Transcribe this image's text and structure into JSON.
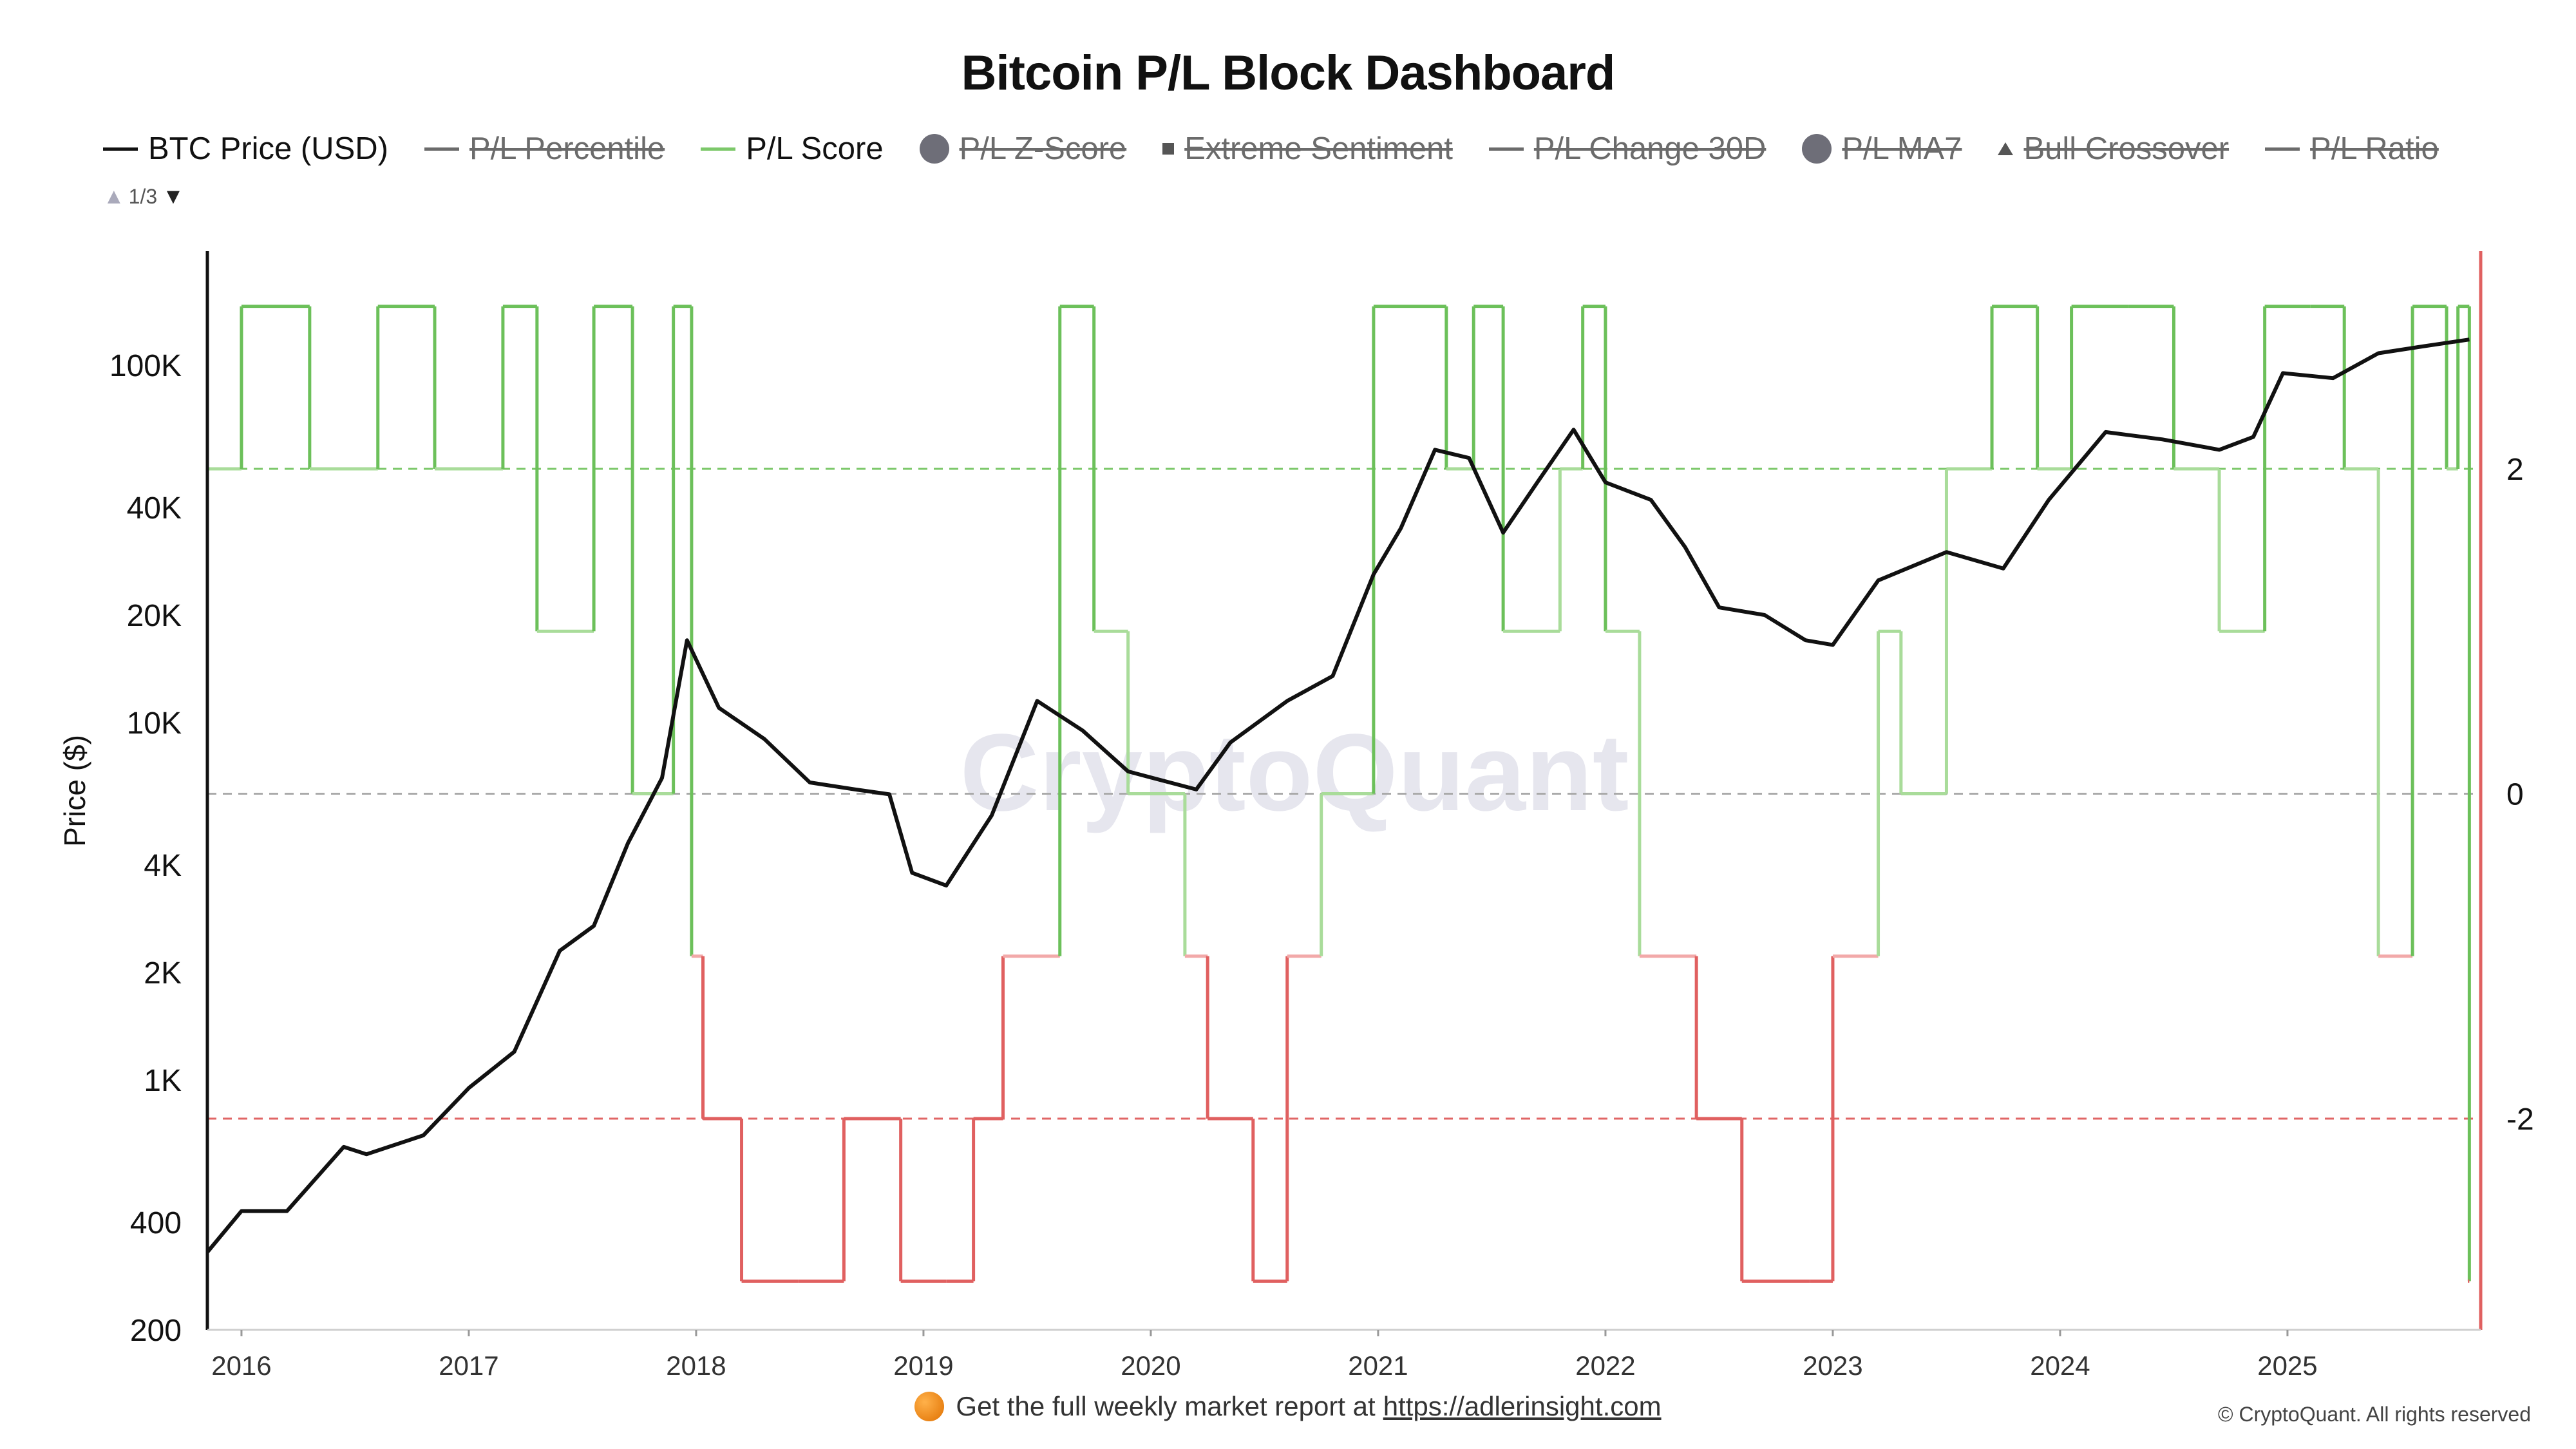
{
  "title": "Bitcoin P/L Block Dashboard",
  "legend": [
    {
      "label": "BTC Price (USD)",
      "marker": "line",
      "color": "#111111",
      "active": true
    },
    {
      "label": "P/L Percentile",
      "marker": "line",
      "color": "#6b6b6b",
      "active": false
    },
    {
      "label": "P/L Score",
      "marker": "line",
      "color": "#7cc86a",
      "active": true
    },
    {
      "label": "P/L Z-Score",
      "marker": "dot",
      "color": "#6e6e78",
      "active": false
    },
    {
      "label": "Extreme Sentiment",
      "marker": "square",
      "color": "#555555",
      "active": false
    },
    {
      "label": "P/L Change 30D",
      "marker": "line",
      "color": "#6b6b6b",
      "active": false
    },
    {
      "label": "P/L MA7",
      "marker": "dot",
      "color": "#6e6e78",
      "active": false
    },
    {
      "label": "Bull Crossover",
      "marker": "triangle",
      "color": "#555555",
      "active": false
    },
    {
      "label": "P/L Ratio",
      "marker": "line",
      "color": "#6b6b6b",
      "active": false
    }
  ],
  "pager": {
    "label": "1/3",
    "up_icon": "triangle-up-icon",
    "down_icon": "triangle-down-icon"
  },
  "watermark": "CryptoQuant",
  "footer": {
    "text": "Get the full weekly market report at",
    "link": "https://adlerinsight.com",
    "icon": "orange-circle-icon"
  },
  "copyright": "© CryptoQuant. All rights reserved",
  "chart_data": {
    "type": "line",
    "ylabel": "Price ($)",
    "y_scale": "log",
    "ylim": [
      200,
      200000
    ],
    "y_ticks": [
      {
        "label": "100K",
        "value": 100000
      },
      {
        "label": "40K",
        "value": 40000
      },
      {
        "label": "20K",
        "value": 20000
      },
      {
        "label": "10K",
        "value": 10000
      },
      {
        "label": "4K",
        "value": 4000
      },
      {
        "label": "2K",
        "value": 2000
      },
      {
        "label": "1K",
        "value": 1000
      },
      {
        "label": "400",
        "value": 400
      },
      {
        "label": "200",
        "value": 200
      }
    ],
    "y2_ticks": [
      2,
      0,
      -2
    ],
    "y2lim": [
      -3.3,
      3.3
    ],
    "xlim": [
      2015.85,
      2025.85
    ],
    "x_ticks": [
      "2016",
      "2017",
      "2018",
      "2019",
      "2020",
      "2021",
      "2022",
      "2023",
      "2024",
      "2025"
    ],
    "reference_lines": [
      {
        "value": 2,
        "color": "#7cc86a"
      },
      {
        "value": 0,
        "color": "#aaaaaa"
      },
      {
        "value": -2,
        "color": "#e06666"
      }
    ],
    "colors": {
      "price": "#111111",
      "score_bull": "#6cc05a",
      "score_mild_bull": "#a9dc9a",
      "score_mild_bear": "#f2a9a9",
      "score_bear": "#e06060"
    },
    "series": [
      {
        "name": "BTC Price (USD)",
        "axis": "left",
        "x": [
          2015.85,
          2016.0,
          2016.2,
          2016.45,
          2016.55,
          2016.8,
          2017.0,
          2017.2,
          2017.4,
          2017.55,
          2017.7,
          2017.85,
          2017.96,
          2018.1,
          2018.3,
          2018.5,
          2018.7,
          2018.85,
          2018.95,
          2019.1,
          2019.3,
          2019.5,
          2019.7,
          2019.9,
          2020.2,
          2020.35,
          2020.6,
          2020.8,
          2020.98,
          2021.1,
          2021.25,
          2021.4,
          2021.55,
          2021.7,
          2021.86,
          2022.0,
          2022.2,
          2022.35,
          2022.5,
          2022.7,
          2022.88,
          2023.0,
          2023.2,
          2023.5,
          2023.75,
          2023.95,
          2024.2,
          2024.45,
          2024.7,
          2024.85,
          2024.98,
          2025.2,
          2025.4,
          2025.6,
          2025.8
        ],
        "values": [
          330,
          430,
          430,
          650,
          620,
          700,
          950,
          1200,
          2300,
          2700,
          4600,
          7000,
          17000,
          11000,
          9000,
          6800,
          6500,
          6300,
          3800,
          3500,
          5500,
          11500,
          9500,
          7300,
          6500,
          8800,
          11500,
          13500,
          26000,
          35000,
          58000,
          55000,
          34000,
          47000,
          66000,
          47000,
          42000,
          31000,
          21000,
          20000,
          17000,
          16500,
          25000,
          30000,
          27000,
          42000,
          65000,
          62000,
          58000,
          63000,
          95000,
          92000,
          108000,
          113000,
          118000
        ]
      },
      {
        "name": "P/L Score",
        "axis": "right",
        "x": [
          2015.85,
          2016.0,
          2016.3,
          2016.6,
          2016.85,
          2017.15,
          2017.3,
          2017.55,
          2017.72,
          2017.9,
          2017.98,
          2018.03,
          2018.2,
          2018.45,
          2018.65,
          2018.9,
          2019.1,
          2019.22,
          2019.35,
          2019.6,
          2019.75,
          2019.9,
          2020.15,
          2020.25,
          2020.45,
          2020.6,
          2020.75,
          2020.98,
          2021.3,
          2021.42,
          2021.55,
          2021.8,
          2021.9,
          2022.0,
          2022.15,
          2022.4,
          2022.6,
          2022.9,
          2023.0,
          2023.2,
          2023.3,
          2023.5,
          2023.7,
          2023.9,
          2024.05,
          2024.3,
          2024.5,
          2024.7,
          2024.9,
          2025.1,
          2025.25,
          2025.4,
          2025.55,
          2025.7,
          2025.75,
          2025.8
        ],
        "values": [
          2,
          3,
          2,
          3,
          2,
          3,
          1,
          3,
          0,
          3,
          -1,
          -2,
          -3,
          -3,
          -2,
          -3,
          -3,
          -2,
          -1,
          3,
          1,
          0,
          -1,
          -2,
          -3,
          -1,
          0,
          3,
          2,
          3,
          1,
          2,
          3,
          1,
          -1,
          -2,
          -3,
          -3,
          -1,
          1,
          0,
          2,
          3,
          2,
          3,
          3,
          2,
          1,
          3,
          3,
          2,
          -1,
          3,
          2,
          3,
          -3
        ]
      }
    ]
  }
}
